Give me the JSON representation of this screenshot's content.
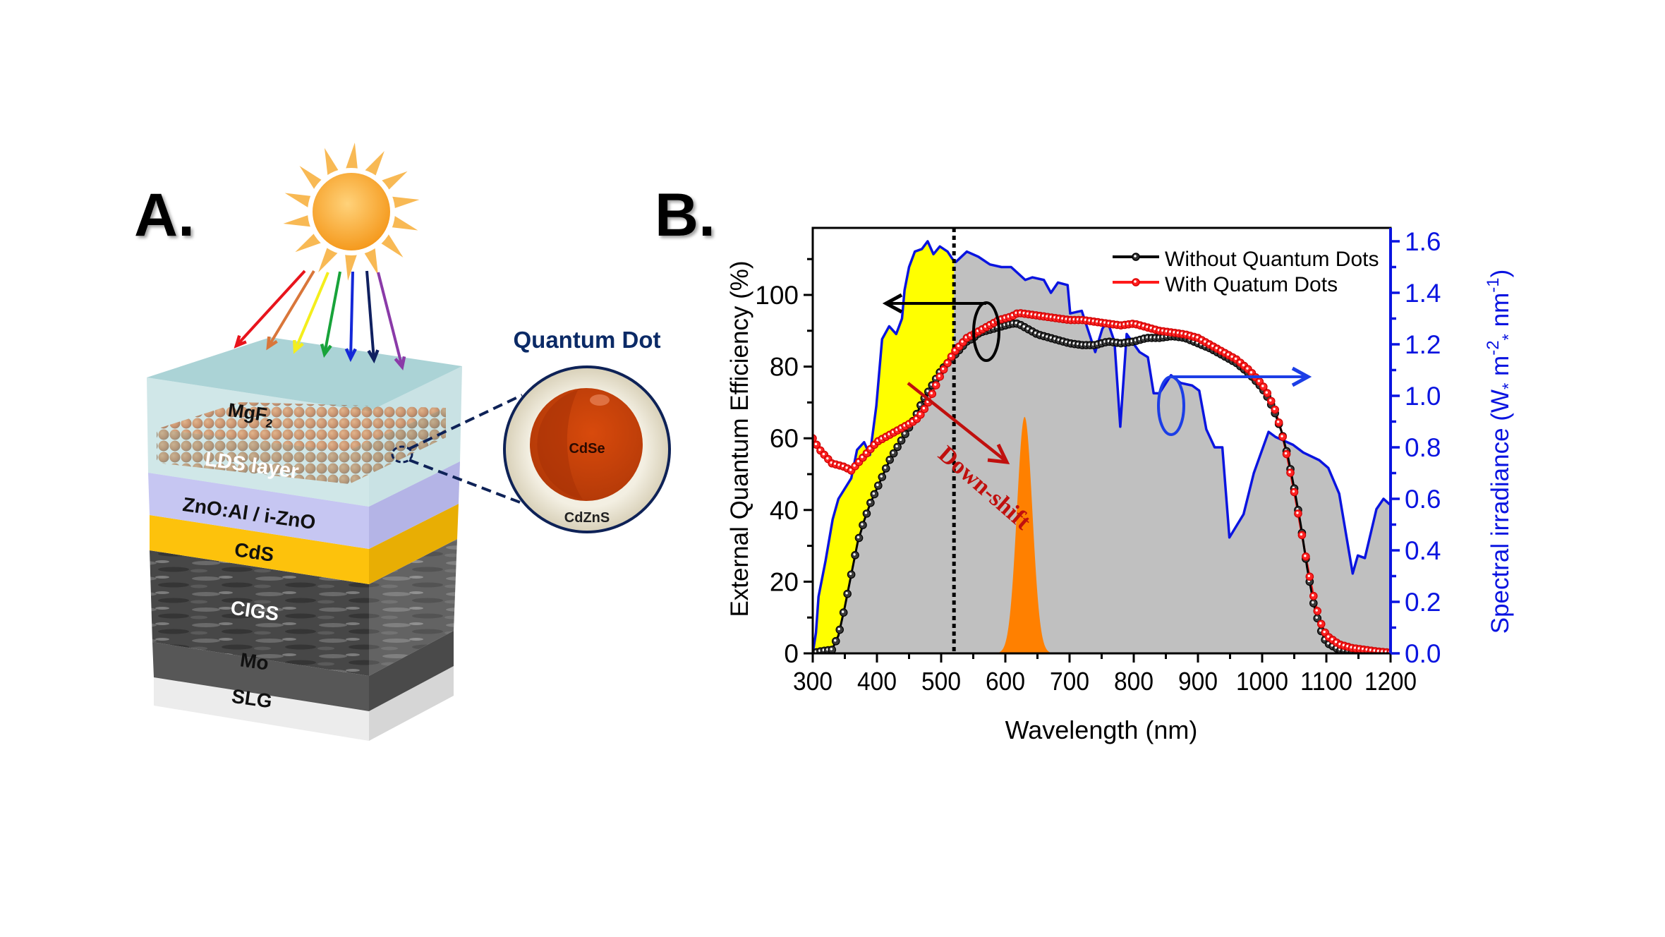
{
  "panel_a": {
    "label": "A.",
    "quantum_dot_title": "Quantum Dot",
    "core_label": "CdSe",
    "shell_label": "CdZnS",
    "layers": [
      {
        "id": "mgf2",
        "label": "MgF",
        "subscript": "2",
        "color": "#a9d3d6"
      },
      {
        "id": "lds",
        "label": "LDS layer",
        "color": "#c0561a"
      },
      {
        "id": "zno",
        "label": "ZnO:Al / i-ZnO",
        "color": "#c3c3ee"
      },
      {
        "id": "cds",
        "label": "CdS",
        "color": "#fdc20c"
      },
      {
        "id": "cigs",
        "label": "CIGS",
        "color": "#4a4a4a"
      },
      {
        "id": "mo",
        "label": "Mo",
        "color": "#5c5c5c"
      },
      {
        "id": "slg",
        "label": "SLG",
        "color": "#e9e9e9"
      }
    ],
    "light_rays": [
      "#e8141c",
      "#d9763a",
      "#f4ee1c",
      "#18a33a",
      "#1428d8",
      "#102060",
      "#8a3aa8"
    ],
    "colors": {
      "sun": "#f7a935",
      "qd_core": "#c93d0a",
      "qd_shell": "#ebe6d6",
      "qd_outline": "#0e2257",
      "title": "#0b2a66"
    }
  },
  "panel_b": {
    "label": "B."
  },
  "chart_data": {
    "type": "line",
    "xlabel": "Wavelength (nm)",
    "ylabel": "External Quantum Efficiency (%)",
    "y2label_main": "Spectral irradiance (W",
    "y2label_star1": "*",
    "y2label_m": " m",
    "y2label_exp1": "-2",
    "y2label_star2": "*",
    "y2label_nm": " nm",
    "y2label_exp2": "-1",
    "y2label_close": ")",
    "xlim": [
      300,
      1200
    ],
    "ylim": [
      0,
      118.7
    ],
    "y2lim": [
      0,
      1.652
    ],
    "x_ticks": [
      300,
      400,
      500,
      600,
      700,
      800,
      900,
      1000,
      1100,
      1200
    ],
    "x_tick_labels": [
      "300",
      "400",
      "500",
      "600",
      "700",
      "800",
      "900",
      "1000",
      "1100",
      "1200"
    ],
    "y_ticks": [
      0,
      20,
      40,
      60,
      80,
      100
    ],
    "y_tick_labels": [
      "0",
      "20",
      "40",
      "60",
      "80",
      "100"
    ],
    "y2_ticks": [
      0.0,
      0.2,
      0.4,
      0.6,
      0.8,
      1.0,
      1.2,
      1.4,
      1.6
    ],
    "y2_tick_labels": [
      "0.0",
      "0.2",
      "0.4",
      "0.6",
      "0.8",
      "1.0",
      "1.2",
      "1.4",
      "1.6"
    ],
    "legend": {
      "position": "top-right",
      "entries": [
        "Without Quantum Dots",
        "With Quatum Dots"
      ]
    },
    "annotation_downshift": "Down-shift",
    "cutoff_wavelength": 520,
    "colors": {
      "without": "#000000",
      "with": "#ff1a1a",
      "irradiance": "#0a14e0",
      "irradiance_fill": "#c0c0c0",
      "uv_fill": "#ffff00",
      "emission": "#ff8000",
      "downshift": "#c0100e"
    },
    "series": [
      {
        "name": "Without Quantum Dots",
        "axis": "left",
        "x": [
          300,
          310,
          320,
          330,
          340,
          350,
          360,
          370,
          380,
          390,
          400,
          410,
          420,
          430,
          440,
          450,
          460,
          470,
          480,
          490,
          500,
          510,
          520,
          530,
          540,
          550,
          560,
          570,
          580,
          590,
          600,
          610,
          620,
          630,
          640,
          650,
          660,
          670,
          680,
          690,
          700,
          720,
          740,
          760,
          780,
          800,
          820,
          840,
          860,
          880,
          900,
          920,
          940,
          960,
          980,
          1000,
          1010,
          1020,
          1030,
          1040,
          1050,
          1060,
          1070,
          1080,
          1090,
          1100,
          1120,
          1140,
          1160,
          1180,
          1200
        ],
        "values": [
          0,
          0.5,
          0.8,
          1,
          5,
          13,
          22,
          31,
          37,
          42,
          46,
          50,
          54,
          57,
          60,
          63,
          66,
          70,
          73,
          76,
          79,
          81,
          83,
          85,
          87,
          88,
          89.5,
          90,
          90.5,
          91,
          91.5,
          92,
          92,
          91,
          90,
          89,
          88.5,
          88,
          87.5,
          87,
          86.5,
          86,
          86,
          87,
          86.5,
          87,
          88,
          88,
          88.5,
          88,
          86.5,
          85,
          83,
          81,
          78,
          74,
          71,
          67,
          62,
          55,
          46,
          36,
          24,
          14,
          7,
          3,
          1,
          0.5,
          0.3,
          0.2,
          0
        ]
      },
      {
        "name": "With Quatum Dots",
        "axis": "left",
        "x": [
          300,
          310,
          320,
          330,
          340,
          350,
          360,
          370,
          380,
          390,
          400,
          410,
          420,
          430,
          440,
          450,
          460,
          470,
          480,
          490,
          500,
          510,
          520,
          530,
          540,
          550,
          560,
          570,
          580,
          590,
          600,
          610,
          620,
          640,
          660,
          680,
          700,
          720,
          740,
          760,
          780,
          800,
          820,
          840,
          860,
          880,
          900,
          920,
          940,
          960,
          980,
          1000,
          1010,
          1020,
          1030,
          1040,
          1050,
          1060,
          1070,
          1080,
          1090,
          1100,
          1120,
          1140,
          1160,
          1180,
          1200
        ],
        "values": [
          60,
          57,
          55,
          53,
          52.5,
          52,
          51,
          53,
          55,
          57,
          59,
          60,
          61,
          62,
          63,
          64,
          65,
          67,
          70,
          74,
          78,
          81,
          84,
          86,
          88,
          89,
          90,
          91,
          92,
          93,
          93.5,
          94,
          95,
          94.5,
          94,
          93.5,
          93,
          93,
          92.5,
          92,
          91.5,
          92,
          91,
          90,
          89.5,
          89,
          88,
          86,
          84,
          82,
          79,
          75,
          72,
          68,
          62,
          54,
          45,
          35,
          25,
          16,
          9,
          5,
          2.5,
          1.5,
          1,
          0.5,
          0.2
        ]
      },
      {
        "name": "Spectral irradiance",
        "axis": "right",
        "x": [
          300,
          305,
          309,
          320,
          331,
          340,
          360,
          369,
          380,
          389,
          399,
          408,
          419,
          430,
          439,
          443,
          450,
          459,
          470,
          479,
          488,
          498,
          510,
          518,
          523,
          540,
          558,
          576,
          594,
          609,
          631,
          642,
          660,
          671,
          682,
          697,
          701,
          719,
          740,
          751,
          759,
          770,
          779,
          789,
          809,
          822,
          831,
          840,
          858,
          873,
          891,
          902,
          913,
          926,
          938,
          949,
          971,
          987,
          1010,
          1021,
          1048,
          1064,
          1089,
          1103,
          1120,
          1141,
          1149,
          1160,
          1178,
          1189,
          1198,
          1200
        ],
        "values": [
          0,
          0.08,
          0.22,
          0.36,
          0.52,
          0.6,
          0.68,
          0.79,
          0.82,
          0.77,
          0.96,
          1.22,
          1.27,
          1.24,
          1.3,
          1.41,
          1.5,
          1.56,
          1.57,
          1.6,
          1.55,
          1.58,
          1.56,
          1.53,
          1.52,
          1.56,
          1.54,
          1.51,
          1.5,
          1.5,
          1.45,
          1.46,
          1.45,
          1.4,
          1.44,
          1.43,
          1.32,
          1.33,
          1.17,
          1.26,
          1.29,
          1.21,
          0.88,
          1.24,
          1.17,
          1.15,
          1.01,
          1.01,
          1.08,
          1.05,
          1.04,
          1.02,
          0.87,
          0.8,
          0.8,
          0.45,
          0.54,
          0.7,
          0.86,
          0.84,
          0.81,
          0.78,
          0.75,
          0.72,
          0.62,
          0.31,
          0.38,
          0.37,
          0.56,
          0.6,
          0.58,
          0.58
        ]
      },
      {
        "name": "QD emission",
        "axis": "left",
        "type": "gaussian",
        "center": 630,
        "sigma": 12,
        "peak": 66
      }
    ]
  }
}
